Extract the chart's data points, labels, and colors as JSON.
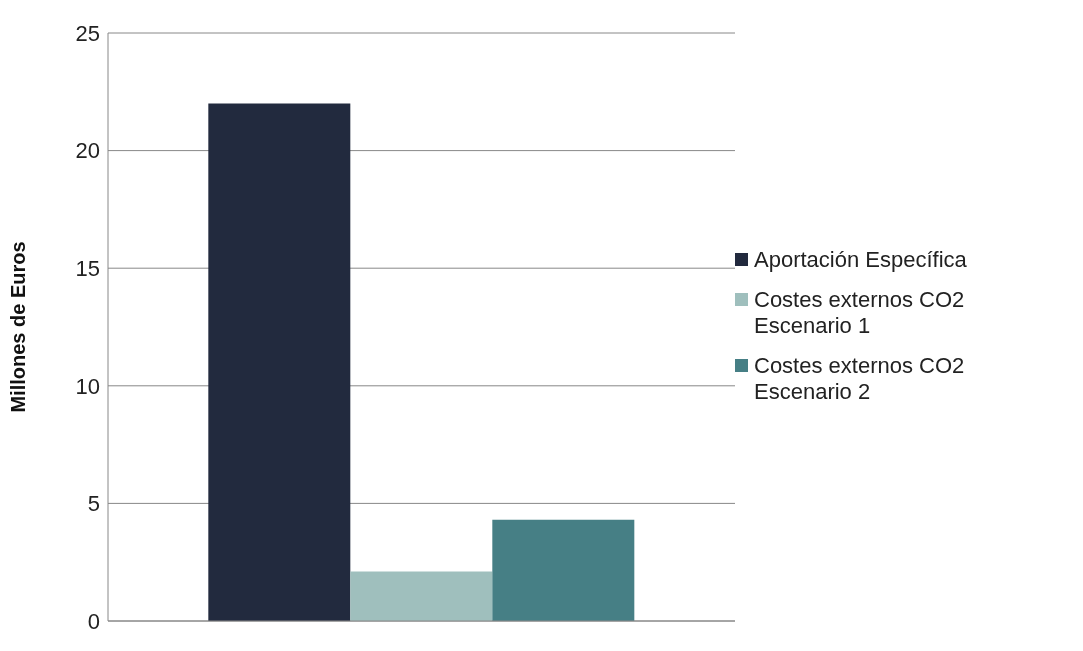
{
  "chart_data": {
    "type": "bar",
    "ylabel": "Millones de Euros",
    "categories": [
      null
    ],
    "series": [
      {
        "name": "Aportación Específica",
        "color": "#222a3e",
        "values": [
          22
        ]
      },
      {
        "name": "Costes externos CO2 Escenario 1",
        "color": "#9fbfbd",
        "values": [
          2.1
        ]
      },
      {
        "name": "Costes externos CO2 Escenario 2",
        "color": "#467f85",
        "values": [
          4.3
        ]
      }
    ],
    "ylim": [
      0,
      25
    ],
    "yticks": [
      0,
      5,
      10,
      15,
      20,
      25
    ],
    "grid": "y",
    "legend": "right"
  }
}
